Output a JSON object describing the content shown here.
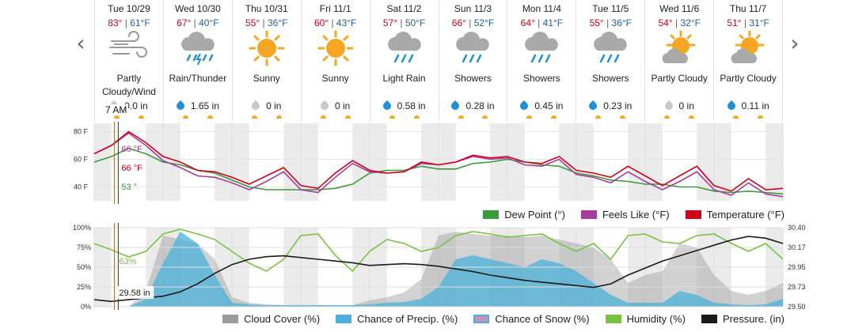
{
  "navigation": {
    "prev_icon": "chevron-left-icon",
    "next_icon": "chevron-right-icon",
    "prev_glyph": "‹",
    "next_glyph": "›"
  },
  "forecast": [
    {
      "date": "Tue 10/29",
      "hi": "83°",
      "lo": "61°F",
      "icon": "wind-icon",
      "condition": "Partly Cloudy/Wind",
      "precip": "0.0 in",
      "precip_kind": "none"
    },
    {
      "date": "Wed 10/30",
      "hi": "67°",
      "lo": "40°F",
      "icon": "thunder-rain-icon",
      "condition": "Rain/Thunder",
      "precip": "1.65 in",
      "precip_kind": "rain"
    },
    {
      "date": "Thu 10/31",
      "hi": "55°",
      "lo": "36°F",
      "icon": "sunny-icon",
      "condition": "Sunny",
      "precip": "0 in",
      "precip_kind": "none"
    },
    {
      "date": "Fri 11/1",
      "hi": "60°",
      "lo": "43°F",
      "icon": "sunny-icon",
      "condition": "Sunny",
      "precip": "0 in",
      "precip_kind": "none"
    },
    {
      "date": "Sat 11/2",
      "hi": "57°",
      "lo": "50°F",
      "icon": "light-rain-icon",
      "condition": "Light Rain",
      "precip": "0.58 in",
      "precip_kind": "rain"
    },
    {
      "date": "Sun 11/3",
      "hi": "66°",
      "lo": "52°F",
      "icon": "showers-icon",
      "condition": "Showers",
      "precip": "0.28 in",
      "precip_kind": "rain"
    },
    {
      "date": "Mon 11/4",
      "hi": "64°",
      "lo": "41°F",
      "icon": "showers-icon",
      "condition": "Showers",
      "precip": "0.45 in",
      "precip_kind": "rain"
    },
    {
      "date": "Tue 11/5",
      "hi": "55°",
      "lo": "36°F",
      "icon": "showers-icon",
      "condition": "Showers",
      "precip": "0.23 in",
      "precip_kind": "rain"
    },
    {
      "date": "Wed 11/6",
      "hi": "54°",
      "lo": "32°F",
      "icon": "partly-cloudy-icon",
      "condition": "Partly Cloudy",
      "precip": "0 in",
      "precip_kind": "none"
    },
    {
      "date": "Thu 11/7",
      "hi": "51°",
      "lo": "31°F",
      "icon": "partly-cloudy-icon",
      "condition": "Partly Cloudy",
      "precip": "0.11 in",
      "precip_kind": "rain"
    }
  ],
  "cursor": {
    "time": "7 AM",
    "dew_point": "53 °",
    "feels_like": "66 °F",
    "temperature": "66 °F",
    "humidity": "63%",
    "pressure": "29.58 in"
  },
  "colors": {
    "temperature": "#d0021b",
    "feels_like": "#a63d9c",
    "dew_point": "#3c9a3c",
    "cloud_cover": "#9b9b9b",
    "precip": "#4ab0d9",
    "snow": "#c98ec0",
    "humidity": "#7cc242",
    "pressure": "#1a1a1a",
    "rain_drop": "#1e90d6",
    "no_precip": "#c8c8c8",
    "sun": "#f5a623",
    "cloud": "#a0a0a0",
    "night_band": "#ebebeb"
  },
  "chart_data": [
    {
      "type": "line",
      "x": [
        0,
        6,
        12,
        18,
        24,
        30,
        36,
        42,
        48,
        54,
        60,
        66,
        72,
        78,
        84,
        90,
        96,
        102,
        108,
        114,
        120,
        126,
        132,
        138,
        144,
        150,
        156,
        162,
        168,
        174,
        180,
        186,
        192,
        198,
        204,
        210,
        216,
        222,
        228,
        234,
        240
      ],
      "x_units": "hours from Tue 10/29 00:00",
      "series": [
        {
          "name": "Temperature (°F)",
          "values": [
            64,
            70,
            80,
            72,
            62,
            58,
            52,
            51,
            47,
            42,
            48,
            54,
            41,
            39,
            50,
            59,
            52,
            50,
            51,
            58,
            56,
            58,
            63,
            61,
            62,
            58,
            57,
            62,
            52,
            50,
            47,
            55,
            48,
            41,
            48,
            55,
            41,
            37,
            46,
            38,
            39
          ]
        },
        {
          "name": "Feels Like (°F)",
          "values": [
            64,
            70,
            79,
            70,
            59,
            54,
            48,
            47,
            43,
            38,
            44,
            51,
            38,
            36,
            47,
            57,
            51,
            50,
            51,
            57,
            56,
            58,
            62,
            60,
            61,
            56,
            55,
            60,
            49,
            47,
            43,
            51,
            44,
            38,
            44,
            51,
            38,
            34,
            43,
            35,
            33
          ]
        },
        {
          "name": "Dew Point (°)",
          "values": [
            58,
            62,
            68,
            64,
            58,
            56,
            52,
            50,
            45,
            40,
            38,
            38,
            38,
            38,
            39,
            42,
            50,
            52,
            52,
            55,
            53,
            53,
            57,
            58,
            60,
            58,
            56,
            55,
            50,
            48,
            45,
            44,
            42,
            42,
            40,
            40,
            37,
            36,
            37,
            36,
            35
          ]
        }
      ],
      "yticks": [
        "80 F",
        "60 F",
        "40 F"
      ],
      "ylim": [
        30,
        86
      ],
      "legend": [
        "Dew Point (°)",
        "Feels Like (°F)",
        "Temperature (°F)"
      ]
    },
    {
      "type": "area",
      "x": [
        0,
        6,
        12,
        18,
        24,
        30,
        36,
        42,
        48,
        54,
        60,
        66,
        72,
        78,
        84,
        90,
        96,
        102,
        108,
        114,
        120,
        126,
        132,
        138,
        144,
        150,
        156,
        162,
        168,
        174,
        180,
        186,
        192,
        198,
        204,
        210,
        216,
        222,
        228,
        234,
        240
      ],
      "x_units": "hours from Tue 10/29 00:00",
      "series": [
        {
          "name": "Cloud Cover (%)",
          "axis": "left",
          "values": [
            0,
            0,
            0,
            20,
            90,
            85,
            80,
            60,
            12,
            5,
            3,
            2,
            2,
            2,
            2,
            2,
            8,
            12,
            18,
            35,
            90,
            95,
            92,
            90,
            90,
            88,
            90,
            85,
            80,
            75,
            60,
            30,
            40,
            45,
            80,
            75,
            40,
            20,
            15,
            20,
            30
          ]
        },
        {
          "name": "Chance of Precip. (%)",
          "axis": "left",
          "values": [
            0,
            0,
            0,
            10,
            55,
            95,
            80,
            40,
            5,
            3,
            2,
            2,
            2,
            2,
            2,
            2,
            3,
            5,
            6,
            10,
            25,
            60,
            65,
            60,
            55,
            50,
            60,
            55,
            45,
            30,
            15,
            5,
            5,
            5,
            20,
            15,
            5,
            3,
            2,
            3,
            10
          ]
        },
        {
          "name": "Chance of Snow (%)",
          "axis": "left",
          "values": [
            0,
            0,
            0,
            0,
            0,
            0,
            0,
            0,
            0,
            0,
            0,
            0,
            0,
            0,
            0,
            0,
            0,
            0,
            0,
            0,
            0,
            0,
            0,
            0,
            0,
            0,
            0,
            0,
            0,
            0,
            0,
            0,
            0,
            0,
            0,
            0,
            0,
            0,
            0,
            0,
            0
          ]
        },
        {
          "name": "Humidity (%)",
          "axis": "left",
          "values": [
            80,
            72,
            63,
            70,
            92,
            98,
            92,
            85,
            70,
            55,
            45,
            60,
            90,
            92,
            65,
            45,
            70,
            85,
            80,
            70,
            75,
            90,
            95,
            92,
            88,
            90,
            92,
            80,
            70,
            80,
            60,
            90,
            92,
            82,
            80,
            90,
            92,
            80,
            70,
            80,
            60
          ]
        },
        {
          "name": "Pressure. (in)",
          "axis": "right",
          "values": [
            29.58,
            29.56,
            29.58,
            29.6,
            29.62,
            29.67,
            29.76,
            29.88,
            29.98,
            30.04,
            30.07,
            30.08,
            30.06,
            30.04,
            30.02,
            30.0,
            29.97,
            29.98,
            29.99,
            29.98,
            29.96,
            29.93,
            29.9,
            29.86,
            29.83,
            29.8,
            29.78,
            29.76,
            29.74,
            29.72,
            29.76,
            29.86,
            29.94,
            30.02,
            30.08,
            30.14,
            30.2,
            30.26,
            30.3,
            30.28,
            30.22
          ]
        }
      ],
      "yticks_left": [
        "100%",
        "75%",
        "50%",
        "25%",
        "0%"
      ],
      "yticks_right": [
        "30.40",
        "30.17",
        "29.95",
        "29.73",
        "29.50"
      ],
      "ylim_left": [
        0,
        100
      ],
      "ylim_right": [
        29.5,
        30.4
      ],
      "legend": [
        "Cloud Cover (%)",
        "Chance of Precip. (%)",
        "Chance of Snow (%)",
        "Humidity (%)",
        "Pressure. (in)"
      ]
    }
  ]
}
